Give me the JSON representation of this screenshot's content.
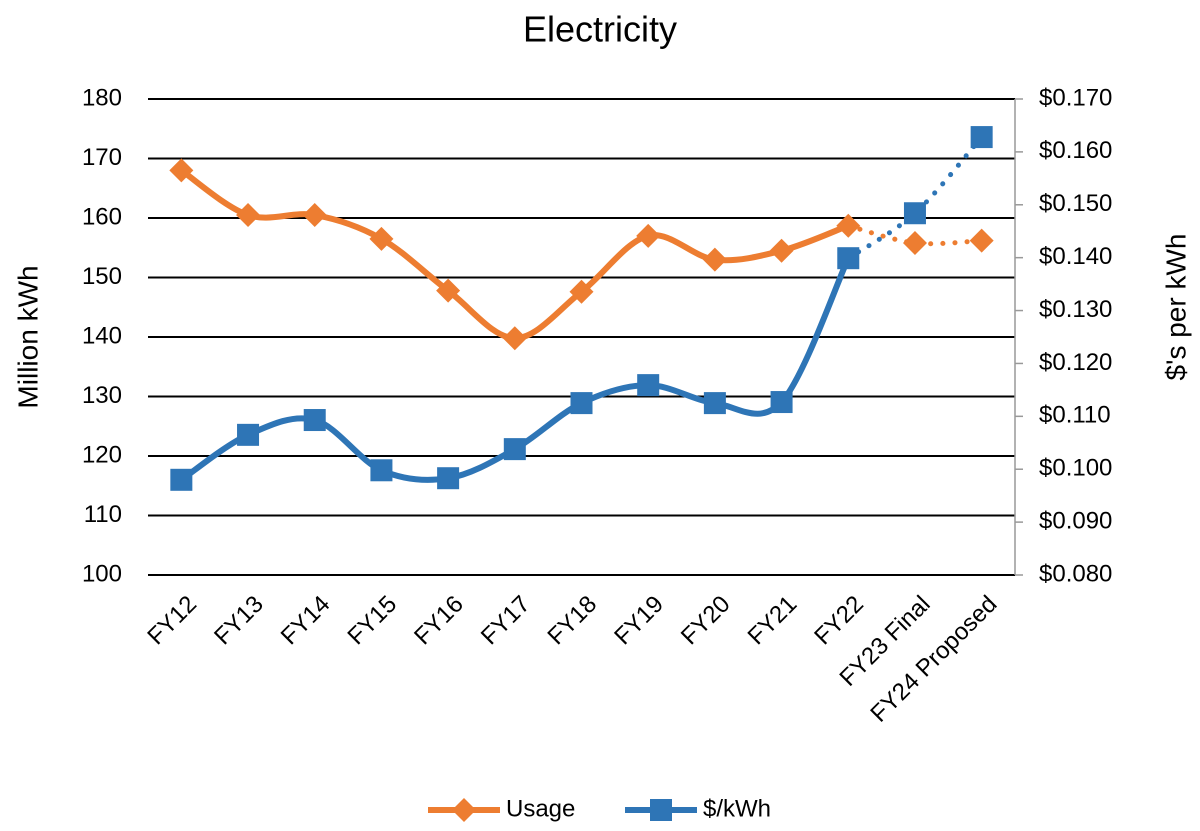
{
  "chart_data": {
    "type": "line",
    "title": "Electricity",
    "y_label": "Million kWh",
    "y2_label": "$'s per kWh",
    "categories": [
      "FY12",
      "FY13",
      "FY14",
      "FY15",
      "FY16",
      "FY17",
      "FY18",
      "FY19",
      "FY20",
      "FY21",
      "FY22",
      "FY23 Final",
      "FY24 Proposed"
    ],
    "series": [
      {
        "name": "Usage",
        "color": "#ED7D31",
        "marker": "diamond",
        "dotted_from_index": 10,
        "values": [
          168,
          160.5,
          160.5,
          156.5,
          147.8,
          139.8,
          147.6,
          157,
          153,
          154.5,
          158.7,
          155.8,
          156.2
        ]
      },
      {
        "name": "$/kWh",
        "color": "#2E75B6",
        "marker": "square",
        "axis": "y2",
        "dotted_from_index": 10,
        "values": [
          0.098,
          0.1065,
          0.1093,
          0.0998,
          0.0983,
          0.1038,
          0.1125,
          0.1159,
          0.1125,
          0.1127,
          0.1399,
          0.1484,
          0.1628
        ]
      }
    ],
    "ylim": [
      100,
      180
    ],
    "yticks": [
      100,
      110,
      120,
      130,
      140,
      150,
      160,
      170,
      180
    ],
    "y2lim": [
      0.08,
      0.17
    ],
    "y2ticks": [
      {
        "value": 0.08,
        "label": "$0.080"
      },
      {
        "value": 0.09,
        "label": "$0.090"
      },
      {
        "value": 0.1,
        "label": "$0.100"
      },
      {
        "value": 0.11,
        "label": "$0.110"
      },
      {
        "value": 0.12,
        "label": "$0.120"
      },
      {
        "value": 0.13,
        "label": "$0.130"
      },
      {
        "value": 0.14,
        "label": "$0.140"
      },
      {
        "value": 0.15,
        "label": "$0.150"
      },
      {
        "value": 0.16,
        "label": "$0.160"
      },
      {
        "value": 0.17,
        "label": "$0.170"
      }
    ],
    "grid": true,
    "smooth": true,
    "legend": "bottom"
  }
}
